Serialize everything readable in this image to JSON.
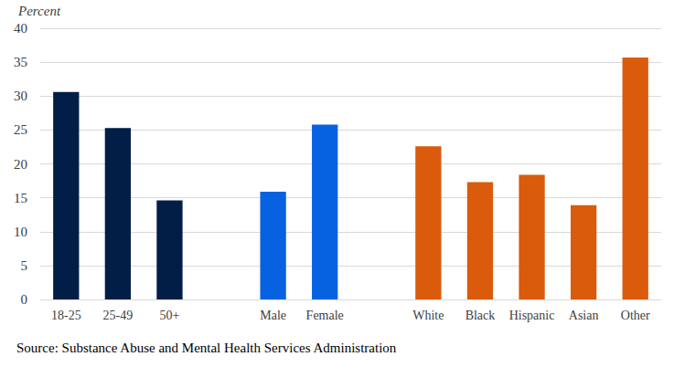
{
  "chart_data": {
    "type": "bar",
    "ylabel": "Percent",
    "annotations": [
      "Source: Substance Abuse and Mental Health Services Administration"
    ],
    "categories": [
      "18-25",
      "25-49",
      "50+",
      null,
      "Male",
      "Female",
      null,
      "White",
      "Black",
      "Hispanic",
      "Asian",
      "Other"
    ],
    "values": [
      30.6,
      25.3,
      14.6,
      null,
      15.9,
      25.8,
      null,
      22.6,
      17.3,
      18.4,
      13.9,
      35.7
    ],
    "colors": [
      "#001e46",
      "#001e46",
      "#001e46",
      null,
      "#0762e1",
      "#0762e1",
      null,
      "#d95b0b",
      "#d95b0b",
      "#d95b0b",
      "#d95b0b",
      "#d95b0b"
    ],
    "ylim": [
      0,
      40
    ],
    "yticks": [
      0,
      5,
      10,
      15,
      20,
      25,
      30,
      35,
      40
    ],
    "grid": true
  }
}
